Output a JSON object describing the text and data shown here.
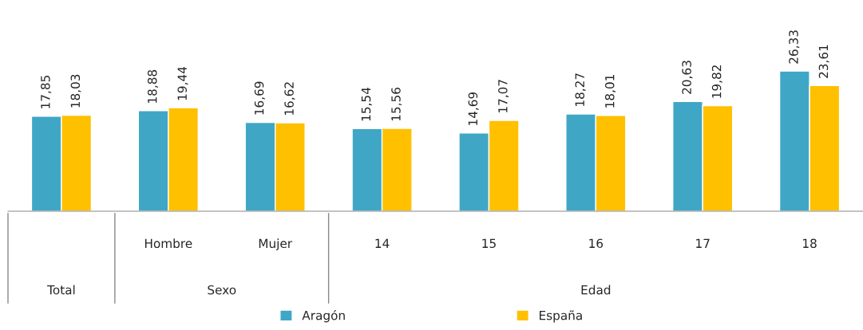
{
  "chart_data": {
    "type": "bar",
    "categories": [
      null,
      "Hombre",
      "Mujer",
      "14",
      "15",
      "16",
      "17",
      "18"
    ],
    "series": [
      {
        "name": "Aragón",
        "color": "#3fa7c5",
        "values": [
          17.85,
          18.88,
          16.69,
          15.54,
          14.69,
          18.27,
          20.63,
          26.33
        ],
        "value_labels": [
          "17,85",
          "18,88",
          "16,69",
          "15,54",
          "14,69",
          "18,27",
          "20,63",
          "26,33"
        ]
      },
      {
        "name": "España",
        "color": "#ffc000",
        "values": [
          18.03,
          19.44,
          16.62,
          15.56,
          17.07,
          18.01,
          19.82,
          23.61
        ],
        "value_labels": [
          "18,03",
          "19,44",
          "16,62",
          "15,56",
          "17,07",
          "18,01",
          "19,82",
          "23,61"
        ]
      }
    ],
    "annotations": [
      "Total",
      "Sexo",
      "Edad"
    ],
    "legend": "bottom"
  }
}
